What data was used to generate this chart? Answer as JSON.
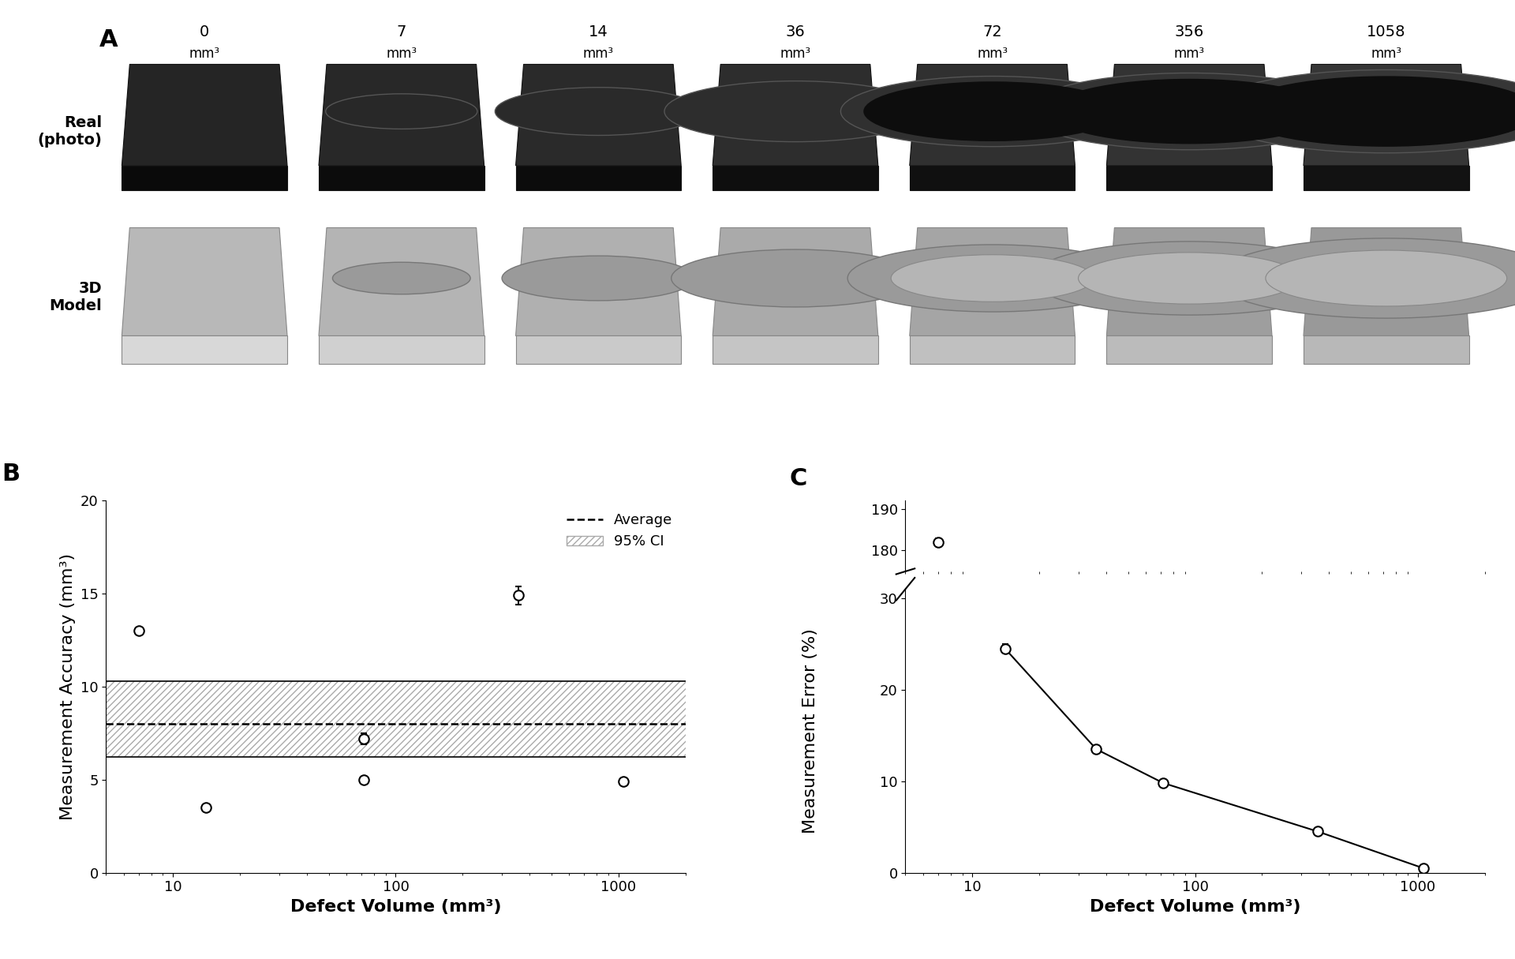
{
  "panel_a_labels": [
    "0",
    "7",
    "14",
    "36",
    "72",
    "356",
    "1058"
  ],
  "panel_a_unit": "mm³",
  "panel_b": {
    "x": [
      7,
      14,
      72,
      72,
      356,
      1058
    ],
    "y": [
      13.0,
      3.5,
      5.0,
      7.2,
      14.9,
      4.9
    ],
    "yerr": [
      0.0,
      0.0,
      0.0,
      0.3,
      0.5,
      0.0
    ],
    "avg": 8.0,
    "ci_low": 6.2,
    "ci_high": 10.3,
    "xlabel": "Defect Volume (mm³)",
    "ylabel": "Measurement Accuracy (mm³)",
    "xlim": [
      5,
      2000
    ],
    "ylim": [
      0,
      20
    ],
    "yticks": [
      0,
      5,
      10,
      15,
      20
    ]
  },
  "panel_c": {
    "x": [
      7,
      14,
      36,
      72,
      356,
      1058
    ],
    "y": [
      182.0,
      24.5,
      13.5,
      9.8,
      4.5,
      0.5
    ],
    "yerr": [
      1.0,
      0.5,
      0.0,
      0.3,
      0.0,
      0.0
    ],
    "xlabel": "Defect Volume (mm³)",
    "ylabel": "Measurement Error (%)",
    "xlim": [
      5,
      2000
    ],
    "break_lower_ylim": [
      0,
      31
    ],
    "break_upper_ylim": [
      175,
      192
    ],
    "lower_yticks": [
      0,
      10,
      20,
      30
    ],
    "upper_yticks": [
      180,
      190
    ]
  },
  "label_fontsize": 16,
  "tick_fontsize": 13,
  "panel_label_fontsize": 22,
  "background_color": "#ffffff"
}
